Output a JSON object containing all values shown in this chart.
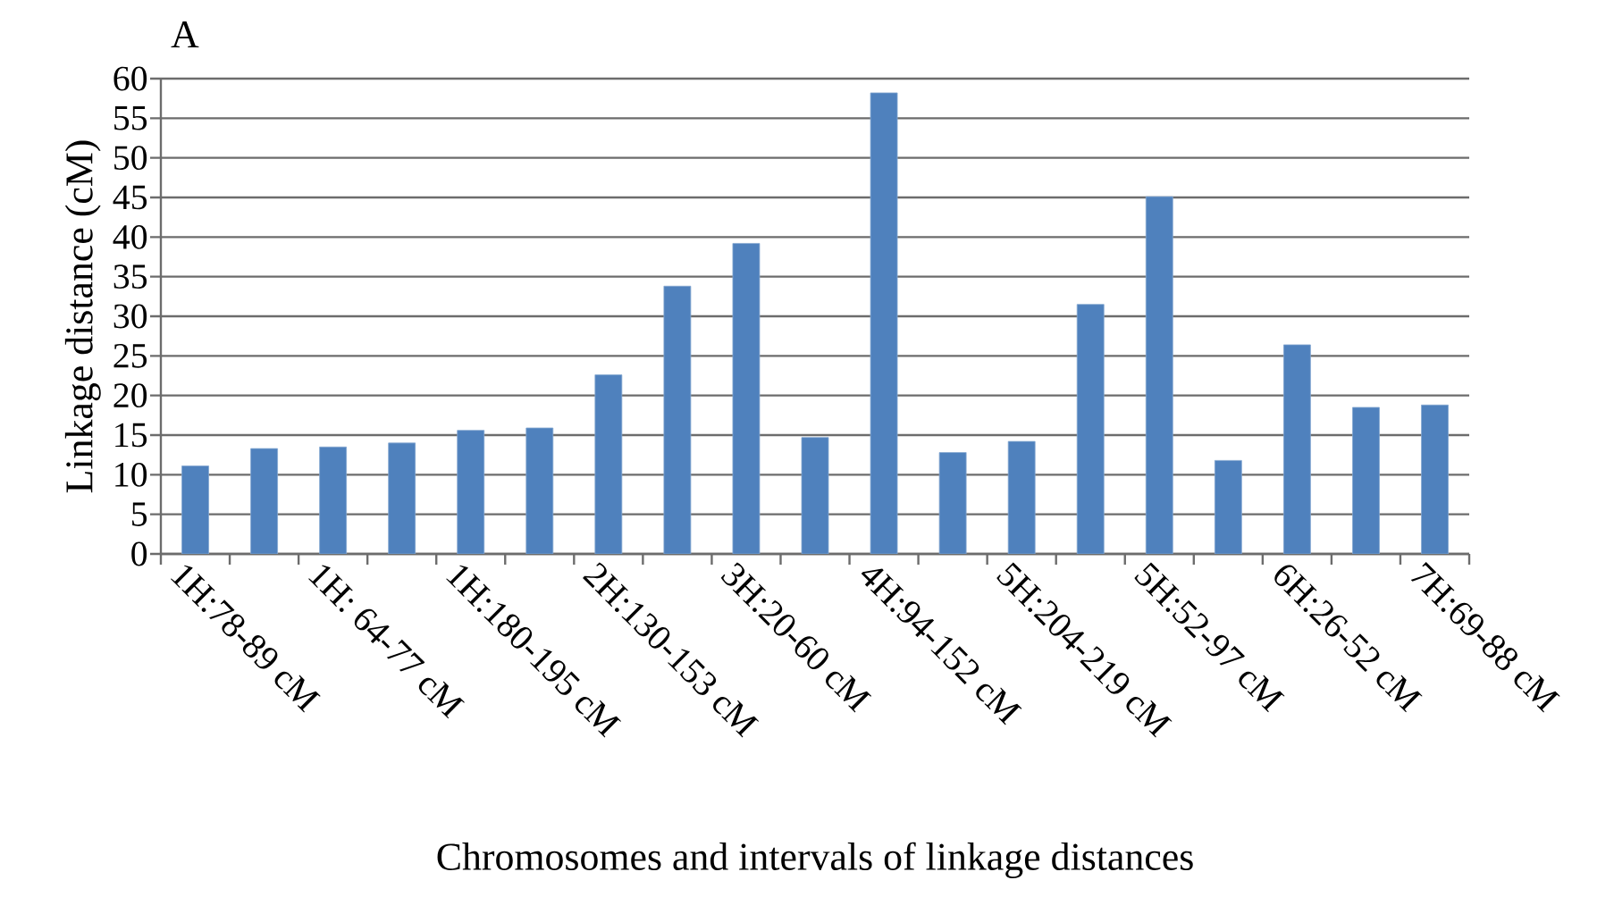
{
  "chart_data": {
    "type": "bar",
    "title": "A",
    "xlabel": "Chromosomes and  intervals of linkage distances",
    "ylabel": "Linkage distance (cM)",
    "categories": [
      "1H:78-89 cM",
      null,
      "1H: 64-77 cM",
      null,
      "1H:180-195 cM",
      null,
      "2H:130-153 cM",
      null,
      "3H:20-60 cM",
      null,
      "4H:94-152 cM",
      null,
      "5H:204-219 cM",
      null,
      "5H:52-97 cM",
      null,
      "6H:26-52 cM",
      null,
      "7H:69-88 cM"
    ],
    "values": [
      11.1,
      13.3,
      13.5,
      14.0,
      15.6,
      15.9,
      22.6,
      33.8,
      39.2,
      14.7,
      58.2,
      12.8,
      14.2,
      31.5,
      45.1,
      11.8,
      26.4,
      18.5,
      18.8
    ],
    "color": "#4f81bd",
    "ylim": [
      0,
      60
    ],
    "yticks": [
      0,
      5,
      10,
      15,
      20,
      25,
      30,
      35,
      40,
      45,
      50,
      55,
      60
    ],
    "grid": "y"
  }
}
